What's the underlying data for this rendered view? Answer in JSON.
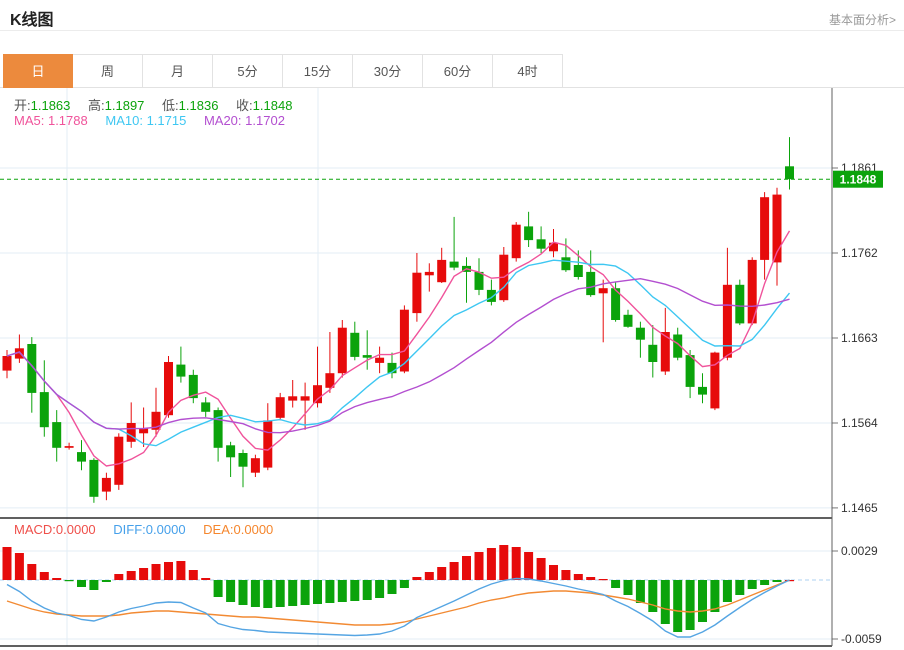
{
  "header": {
    "title": "K线图",
    "link": "基本面分析>"
  },
  "tabs": {
    "items": [
      "日",
      "周",
      "月",
      "5分",
      "15分",
      "30分",
      "60分",
      "4时"
    ],
    "selected_index": 0
  },
  "legend": {
    "ohlc": [
      {
        "label": "开:",
        "value": "1.1863"
      },
      {
        "label": "高:",
        "value": "1.1897"
      },
      {
        "label": "低:",
        "value": "1.1836"
      },
      {
        "label": "收:",
        "value": "1.1848"
      }
    ],
    "ma": [
      {
        "label": "MA5:",
        "value": "1.1788"
      },
      {
        "label": "MA10:",
        "value": "1.1715"
      },
      {
        "label": "MA20:",
        "value": "1.1702"
      }
    ],
    "macd": [
      {
        "label": "MACD:",
        "value": "0.0000"
      },
      {
        "label": "DIFF:",
        "value": "0.0000"
      },
      {
        "label": "DEA:",
        "value": "0.0000"
      }
    ]
  },
  "colors": {
    "up": "#e60b0b",
    "down": "#0ba30b",
    "ma5": "#f0539b",
    "ma10": "#3ec7f2",
    "ma20": "#b34fd0",
    "diff_line": "#55a5e3",
    "dea_line": "#f28a33",
    "tab_active": "#ec8a3d",
    "grid": "#e3edf5",
    "zero_line": "#aed2f0",
    "axis_text": "#333333",
    "last_price_box": "#0ba30b"
  },
  "chart_data": {
    "type": "candlestick+macd",
    "title": "K线图",
    "period_selected": "日",
    "price_axis": {
      "ticks": [
        1.1861,
        1.1762,
        1.1663,
        1.1564,
        1.1465
      ],
      "last_price": 1.1848,
      "grid": true
    },
    "macd_axis": {
      "ticks": [
        0.0029,
        -0.0059
      ],
      "zero_dashed": true
    },
    "ma_periods": [
      5,
      10,
      20
    ],
    "ma_last_values": [
      1.1788,
      1.1715,
      1.1702
    ],
    "last_ohlc": {
      "open": 1.1863,
      "high": 1.1897,
      "low": 1.1836,
      "close": 1.1848
    },
    "candles": [
      [
        1.1625,
        1.1649,
        1.1616,
        1.1642
      ],
      [
        1.1639,
        1.1667,
        1.1634,
        1.1651
      ],
      [
        1.1656,
        1.1664,
        1.1576,
        1.1599
      ],
      [
        1.16,
        1.1637,
        1.1548,
        1.1559
      ],
      [
        1.1565,
        1.1579,
        1.1519,
        1.1535
      ],
      [
        1.1535,
        1.1541,
        1.1533,
        1.1537
      ],
      [
        1.153,
        1.1544,
        1.1509,
        1.1519
      ],
      [
        1.1521,
        1.1523,
        1.1471,
        1.1478
      ],
      [
        1.1484,
        1.1506,
        1.1474,
        1.15
      ],
      [
        1.1492,
        1.1552,
        1.1486,
        1.1548
      ],
      [
        1.1542,
        1.1588,
        1.1535,
        1.1564
      ],
      [
        1.1552,
        1.1582,
        1.1536,
        1.1558
      ],
      [
        1.1556,
        1.1605,
        1.1548,
        1.1577
      ],
      [
        1.1573,
        1.1642,
        1.157,
        1.1635
      ],
      [
        1.1632,
        1.1653,
        1.1611,
        1.1618
      ],
      [
        1.162,
        1.1626,
        1.1587,
        1.1593
      ],
      [
        1.1588,
        1.1594,
        1.1571,
        1.1577
      ],
      [
        1.1579,
        1.1582,
        1.1519,
        1.1535
      ],
      [
        1.1538,
        1.1542,
        1.1501,
        1.1524
      ],
      [
        1.1529,
        1.1533,
        1.1489,
        1.1513
      ],
      [
        1.1506,
        1.1527,
        1.1501,
        1.1523
      ],
      [
        1.1512,
        1.1587,
        1.1509,
        1.1567
      ],
      [
        1.157,
        1.1599,
        1.1567,
        1.1594
      ],
      [
        1.159,
        1.1614,
        1.1582,
        1.1595
      ],
      [
        1.159,
        1.1611,
        1.1556,
        1.1595
      ],
      [
        1.1587,
        1.1653,
        1.1582,
        1.1608
      ],
      [
        1.1605,
        1.167,
        1.1599,
        1.1622
      ],
      [
        1.1622,
        1.1684,
        1.1617,
        1.1675
      ],
      [
        1.1669,
        1.1682,
        1.1637,
        1.1641
      ],
      [
        1.1643,
        1.1672,
        1.1626,
        1.164
      ],
      [
        1.1634,
        1.1653,
        1.1622,
        1.164
      ],
      [
        1.1634,
        1.1646,
        1.1616,
        1.1622
      ],
      [
        1.1624,
        1.1701,
        1.1622,
        1.1696
      ],
      [
        1.1692,
        1.1762,
        1.1682,
        1.1739
      ],
      [
        1.1736,
        1.175,
        1.1717,
        1.174
      ],
      [
        1.1728,
        1.1768,
        1.1727,
        1.1754
      ],
      [
        1.1752,
        1.1804,
        1.1742,
        1.1745
      ],
      [
        1.1747,
        1.1757,
        1.1704,
        1.174
      ],
      [
        1.174,
        1.1756,
        1.1713,
        1.1719
      ],
      [
        1.1719,
        1.1731,
        1.1701,
        1.1705
      ],
      [
        1.1707,
        1.1769,
        1.1705,
        1.176
      ],
      [
        1.1756,
        1.1798,
        1.1752,
        1.1795
      ],
      [
        1.1793,
        1.181,
        1.1769,
        1.1777
      ],
      [
        1.1778,
        1.1793,
        1.1762,
        1.1767
      ],
      [
        1.1764,
        1.179,
        1.1757,
        1.1774
      ],
      [
        1.1757,
        1.1779,
        1.174,
        1.1742
      ],
      [
        1.1748,
        1.1765,
        1.1731,
        1.1734
      ],
      [
        1.174,
        1.1765,
        1.1711,
        1.1713
      ],
      [
        1.1715,
        1.1731,
        1.1658,
        1.1721
      ],
      [
        1.1721,
        1.1728,
        1.1682,
        1.1684
      ],
      [
        1.169,
        1.1696,
        1.1675,
        1.1676
      ],
      [
        1.1675,
        1.1682,
        1.164,
        1.1661
      ],
      [
        1.1655,
        1.1678,
        1.1617,
        1.1635
      ],
      [
        1.1624,
        1.1698,
        1.162,
        1.167
      ],
      [
        1.1667,
        1.1675,
        1.1637,
        1.164
      ],
      [
        1.1643,
        1.1649,
        1.1593,
        1.1606
      ],
      [
        1.1606,
        1.1622,
        1.1587,
        1.1597
      ],
      [
        1.1581,
        1.1647,
        1.1579,
        1.1646
      ],
      [
        1.164,
        1.1768,
        1.1637,
        1.1725
      ],
      [
        1.1725,
        1.1731,
        1.1678,
        1.168
      ],
      [
        1.168,
        1.1757,
        1.1678,
        1.1754
      ],
      [
        1.1754,
        1.1833,
        1.1731,
        1.1827
      ],
      [
        1.1751,
        1.1838,
        1.1724,
        1.183
      ],
      [
        1.1863,
        1.1897,
        1.1836,
        1.1848
      ]
    ],
    "macd_hist": [
      0.0033,
      0.0027,
      0.0016,
      0.0008,
      0.0002,
      -0.0001,
      -0.0007,
      -0.001,
      -0.0002,
      0.0006,
      0.0009,
      0.0012,
      0.0016,
      0.0018,
      0.0019,
      0.001,
      0.0002,
      -0.0017,
      -0.0022,
      -0.0025,
      -0.0027,
      -0.0028,
      -0.0027,
      -0.0026,
      -0.0025,
      -0.0024,
      -0.0023,
      -0.0022,
      -0.0021,
      -0.002,
      -0.0018,
      -0.0014,
      -0.0008,
      0.0003,
      0.0008,
      0.0013,
      0.0018,
      0.0024,
      0.0028,
      0.0032,
      0.0035,
      0.0033,
      0.0028,
      0.0022,
      0.0015,
      0.001,
      0.0006,
      0.0003,
      0.0001,
      -0.0008,
      -0.0015,
      -0.0023,
      -0.0032,
      -0.0044,
      -0.0052,
      -0.005,
      -0.0042,
      -0.0032,
      -0.0022,
      -0.0015,
      -0.0009,
      -0.0005,
      -0.0002,
      0.0
    ],
    "dea": [
      -0.0021,
      -0.0025,
      -0.0029,
      -0.0032,
      -0.0034,
      -0.0035,
      -0.0036,
      -0.0036,
      -0.0036,
      -0.0035,
      -0.0033,
      -0.0032,
      -0.0031,
      -0.0031,
      -0.0032,
      -0.0033,
      -0.0034,
      -0.0035,
      -0.0036,
      -0.0037,
      -0.0037,
      -0.0038,
      -0.0039,
      -0.004,
      -0.0041,
      -0.0042,
      -0.0043,
      -0.0044,
      -0.0045,
      -0.0045,
      -0.0045,
      -0.0044,
      -0.0042,
      -0.0039,
      -0.0036,
      -0.0033,
      -0.003,
      -0.0027,
      -0.0023,
      -0.002,
      -0.0018,
      -0.0015,
      -0.0013,
      -0.0012,
      -0.0011,
      -0.0011,
      -0.0012,
      -0.0013,
      -0.0015,
      -0.0017,
      -0.0019,
      -0.0022,
      -0.0025,
      -0.0029,
      -0.0031,
      -0.0032,
      -0.0031,
      -0.0029,
      -0.0025,
      -0.002,
      -0.0015,
      -0.001,
      -0.0005,
      0.0
    ]
  }
}
